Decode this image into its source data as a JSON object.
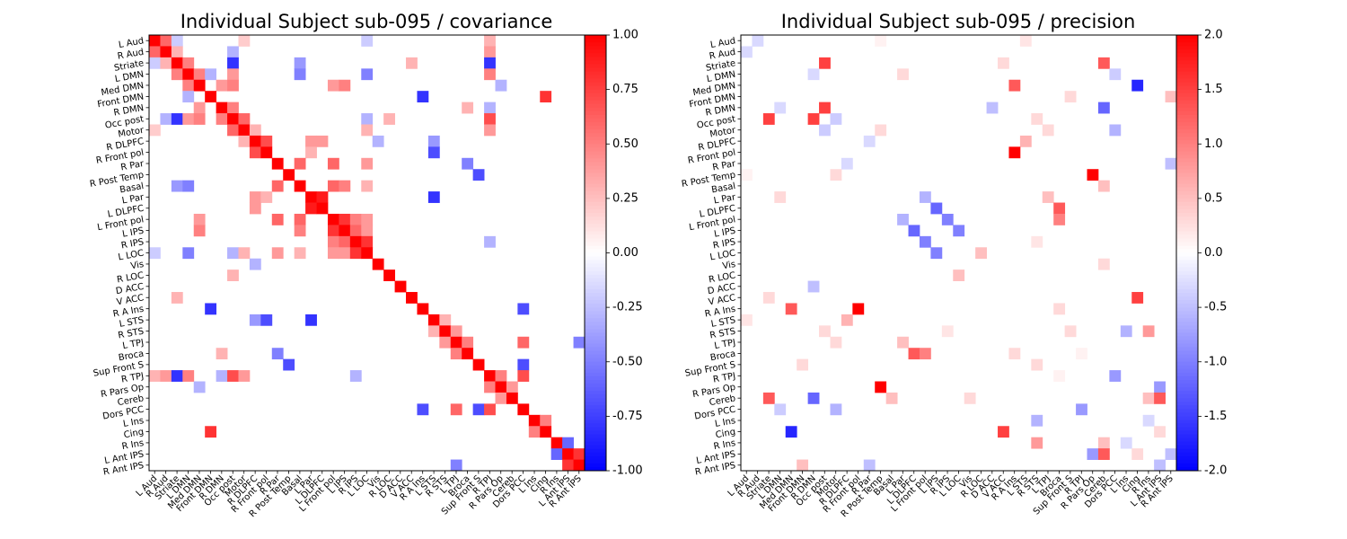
{
  "chart_data": [
    {
      "type": "heatmap",
      "title": "Individual Subject sub-095 / covariance",
      "colormap": "bwr",
      "vmin": -1.0,
      "vmax": 1.0,
      "colorbar_ticks": [
        "1.00",
        "0.75",
        "0.50",
        "0.25",
        "0.00",
        "-0.25",
        "-0.50",
        "-0.75",
        "-1.00"
      ],
      "colorbar_tick_values": [
        1.0,
        0.75,
        0.5,
        0.25,
        0.0,
        -0.25,
        -0.5,
        -0.75,
        -1.0
      ],
      "diagonal_value": 1.0,
      "cells": [
        [
          0,
          1,
          0.6
        ],
        [
          0,
          2,
          -0.2
        ],
        [
          0,
          8,
          0.2
        ],
        [
          0,
          19,
          -0.2
        ],
        [
          0,
          30,
          0.3
        ],
        [
          1,
          2,
          0.3
        ],
        [
          1,
          7,
          -0.3
        ],
        [
          1,
          30,
          0.4
        ],
        [
          2,
          3,
          0.5
        ],
        [
          2,
          7,
          -0.8
        ],
        [
          2,
          13,
          -0.4
        ],
        [
          2,
          23,
          0.3
        ],
        [
          2,
          30,
          -0.8
        ],
        [
          3,
          4,
          0.5
        ],
        [
          3,
          5,
          -0.3
        ],
        [
          3,
          7,
          0.4
        ],
        [
          3,
          13,
          -0.5
        ],
        [
          3,
          19,
          -0.5
        ],
        [
          3,
          30,
          0.5
        ],
        [
          4,
          6,
          0.4
        ],
        [
          4,
          7,
          0.5
        ],
        [
          4,
          16,
          0.4
        ],
        [
          4,
          17,
          0.5
        ],
        [
          4,
          31,
          -0.3
        ],
        [
          5,
          24,
          -0.8
        ],
        [
          5,
          35,
          0.8
        ],
        [
          6,
          7,
          0.5
        ],
        [
          6,
          28,
          0.3
        ],
        [
          6,
          30,
          -0.3
        ],
        [
          7,
          8,
          0.6
        ],
        [
          7,
          19,
          -0.3
        ],
        [
          7,
          21,
          0.3
        ],
        [
          7,
          30,
          0.7
        ],
        [
          8,
          9,
          0.3
        ],
        [
          8,
          19,
          0.3
        ],
        [
          8,
          30,
          0.4
        ],
        [
          9,
          10,
          0.7
        ],
        [
          9,
          14,
          0.4
        ],
        [
          9,
          15,
          0.4
        ],
        [
          9,
          20,
          -0.3
        ],
        [
          9,
          25,
          -0.4
        ],
        [
          10,
          14,
          0.3
        ],
        [
          10,
          25,
          -0.7
        ],
        [
          11,
          13,
          0.6
        ],
        [
          11,
          16,
          0.6
        ],
        [
          11,
          19,
          0.4
        ],
        [
          11,
          28,
          -0.5
        ],
        [
          12,
          29,
          -0.7
        ],
        [
          13,
          16,
          0.6
        ],
        [
          13,
          17,
          0.5
        ],
        [
          13,
          19,
          0.3
        ],
        [
          14,
          15,
          0.9
        ],
        [
          14,
          25,
          -0.8
        ],
        [
          16,
          17,
          0.8
        ],
        [
          16,
          18,
          0.5
        ],
        [
          16,
          19,
          0.4
        ],
        [
          17,
          18,
          0.6
        ],
        [
          17,
          19,
          0.4
        ],
        [
          18,
          19,
          0.8
        ],
        [
          18,
          30,
          -0.3
        ],
        [
          24,
          33,
          -0.7
        ],
        [
          25,
          26,
          0.3
        ],
        [
          26,
          27,
          0.4
        ],
        [
          27,
          28,
          0.5
        ],
        [
          27,
          33,
          0.6
        ],
        [
          27,
          38,
          -0.5
        ],
        [
          29,
          33,
          -0.7
        ],
        [
          30,
          31,
          0.5
        ],
        [
          30,
          33,
          0.7
        ],
        [
          31,
          32,
          0.4
        ],
        [
          34,
          35,
          0.5
        ],
        [
          36,
          37,
          -0.6
        ],
        [
          37,
          38,
          0.8
        ]
      ],
      "x_tick_labels": [
        "L Aud",
        "R Aud",
        "Striate",
        "L DMN",
        "Med DMN",
        "Front DMN",
        "R DMN",
        "Occ post",
        "Motor",
        "R DLPFC",
        "R Front pol",
        "R Par",
        "R Post Temp",
        "Basal",
        "L Par",
        "L DLPFC",
        "L Front pol",
        "L IPS",
        "R IPS",
        "L LOC",
        "Vis",
        "R LOC",
        "D ACC",
        "V ACC",
        "R A Ins",
        "L STS",
        "R STS",
        "L TPJ",
        "Broca",
        "Sup Front S",
        "R TPJ",
        "R Pars Op",
        "Cereb",
        "Dors PCC",
        "L Ins",
        "Cing",
        "R Ins",
        "L Ant IPS",
        "R Ant IPS"
      ],
      "y_tick_labels": [
        "L Aud",
        "R Aud",
        "Striate",
        "L DMN",
        "Med DMN",
        "Front DMN",
        "R DMN",
        "Occ post",
        "Motor",
        "R DLPFC",
        "R Front pol",
        "R Par",
        "R Post Temp",
        "Basal",
        "L Par",
        "L DLPFC",
        "L Front pol",
        "L IPS",
        "R IPS",
        "L LOC",
        "Vis",
        "R LOC",
        "D ACC",
        "V ACC",
        "R A Ins",
        "L STS",
        "R STS",
        "L TPJ",
        "Broca",
        "Sup Front S",
        "R TPJ",
        "R Pars Op",
        "Cereb",
        "Dors PCC",
        "L Ins",
        "Cing",
        "R Ins",
        "L Ant IPS",
        "R Ant IPS"
      ]
    },
    {
      "type": "heatmap",
      "title": "Individual Subject sub-095 / precision",
      "colormap": "bwr",
      "vmin": -2.0,
      "vmax": 2.0,
      "colorbar_ticks": [
        "2.0",
        "1.5",
        "1.0",
        "0.5",
        "0.0",
        "-0.5",
        "-1.0",
        "-1.5",
        "-2.0"
      ],
      "colorbar_tick_values": [
        2.0,
        1.5,
        1.0,
        0.5,
        0.0,
        -0.5,
        -1.0,
        -1.5,
        -2.0
      ],
      "diagonal_value": 0.0,
      "cells": [
        [
          0,
          1,
          -0.3
        ],
        [
          0,
          12,
          0.1
        ],
        [
          0,
          25,
          0.2
        ],
        [
          2,
          7,
          1.5
        ],
        [
          2,
          32,
          1.3
        ],
        [
          2,
          23,
          0.3
        ],
        [
          3,
          6,
          -0.3
        ],
        [
          3,
          14,
          0.3
        ],
        [
          3,
          33,
          -0.4
        ],
        [
          4,
          24,
          1.3
        ],
        [
          4,
          35,
          -1.7
        ],
        [
          5,
          29,
          0.3
        ],
        [
          5,
          38,
          0.5
        ],
        [
          6,
          7,
          1.5
        ],
        [
          6,
          22,
          -0.5
        ],
        [
          6,
          32,
          -1.2
        ],
        [
          7,
          8,
          -0.4
        ],
        [
          7,
          26,
          0.3
        ],
        [
          8,
          12,
          0.3
        ],
        [
          8,
          27,
          0.3
        ],
        [
          8,
          33,
          -0.6
        ],
        [
          9,
          11,
          -0.3
        ],
        [
          9,
          25,
          0.6
        ],
        [
          10,
          24,
          2.0
        ],
        [
          11,
          38,
          -0.5
        ],
        [
          12,
          31,
          2.0
        ],
        [
          13,
          32,
          0.5
        ],
        [
          14,
          16,
          -0.6
        ],
        [
          14,
          27,
          0.5
        ],
        [
          15,
          17,
          -1.2
        ],
        [
          15,
          28,
          1.3
        ],
        [
          16,
          18,
          -1.0
        ],
        [
          16,
          28,
          1.0
        ],
        [
          17,
          19,
          -1.0
        ],
        [
          18,
          26,
          0.2
        ],
        [
          19,
          21,
          0.5
        ],
        [
          20,
          32,
          0.3
        ],
        [
          23,
          35,
          1.5
        ],
        [
          24,
          28,
          0.3
        ],
        [
          26,
          29,
          0.3
        ],
        [
          26,
          34,
          -0.6
        ],
        [
          26,
          36,
          0.8
        ],
        [
          28,
          30,
          0.1
        ],
        [
          30,
          33,
          -0.8
        ],
        [
          31,
          37,
          -0.8
        ],
        [
          32,
          36,
          0.5
        ],
        [
          32,
          37,
          1.3
        ],
        [
          34,
          36,
          -0.3
        ],
        [
          35,
          37,
          0.3
        ],
        [
          37,
          38,
          -0.5
        ]
      ],
      "x_tick_labels": [
        "L Aud",
        "R Aud",
        "Striate",
        "L DMN",
        "Med DMN",
        "Front DMN",
        "R DMN",
        "Occ post",
        "Motor",
        "R DLPFC",
        "R Front pol",
        "R Par",
        "R Post Temp",
        "Basal",
        "L Par",
        "L DLPFC",
        "L Front pol",
        "L IPS",
        "R IPS",
        "L LOC",
        "Vis",
        "R LOC",
        "D ACC",
        "V ACC",
        "R A Ins",
        "L STS",
        "R STS",
        "L TPJ",
        "Broca",
        "Sup Front S",
        "R TPJ",
        "R Pars Op",
        "Cereb",
        "Dors PCC",
        "L Ins",
        "Cing",
        "R Ins",
        "L Ant IPS",
        "R Ant IPS"
      ],
      "y_tick_labels": [
        "L Aud",
        "R Aud",
        "Striate",
        "L DMN",
        "Med DMN",
        "Front DMN",
        "R DMN",
        "Occ post",
        "Motor",
        "R DLPFC",
        "R Front pol",
        "R Par",
        "R Post Temp",
        "Basal",
        "L Par",
        "L DLPFC",
        "L Front pol",
        "L IPS",
        "R IPS",
        "L LOC",
        "Vis",
        "R LOC",
        "D ACC",
        "V ACC",
        "R A Ins",
        "L STS",
        "R STS",
        "L TPJ",
        "Broca",
        "Sup Front S",
        "R TPJ",
        "R Pars Op",
        "Cereb",
        "Dors PCC",
        "L Ins",
        "Cing",
        "R Ins",
        "L Ant IPS",
        "R Ant IPS"
      ]
    }
  ]
}
